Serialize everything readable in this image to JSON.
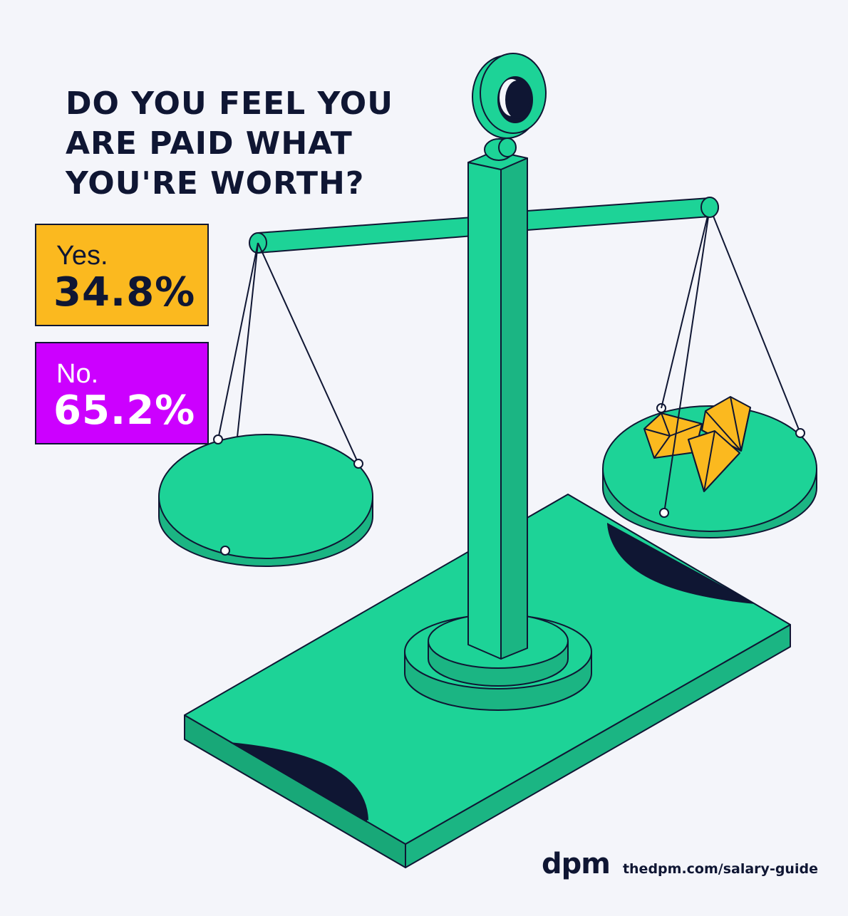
{
  "title_lines": [
    "DO YOU FEEL YOU",
    "ARE PAID WHAT",
    "YOU'RE WORTH?"
  ],
  "answers": [
    {
      "label": "Yes.",
      "value": "34.8%",
      "color": "#fbb91f"
    },
    {
      "label": "No.",
      "value": "65.2%",
      "color": "#cc00ff"
    }
  ],
  "brand": {
    "logo": "dpm",
    "url": "thedpm.com/salary-guide"
  },
  "colors": {
    "background": "#f4f5fa",
    "ink": "#0f1633",
    "scale_green": "#1dd397",
    "gem_yellow": "#fbb91f"
  }
}
